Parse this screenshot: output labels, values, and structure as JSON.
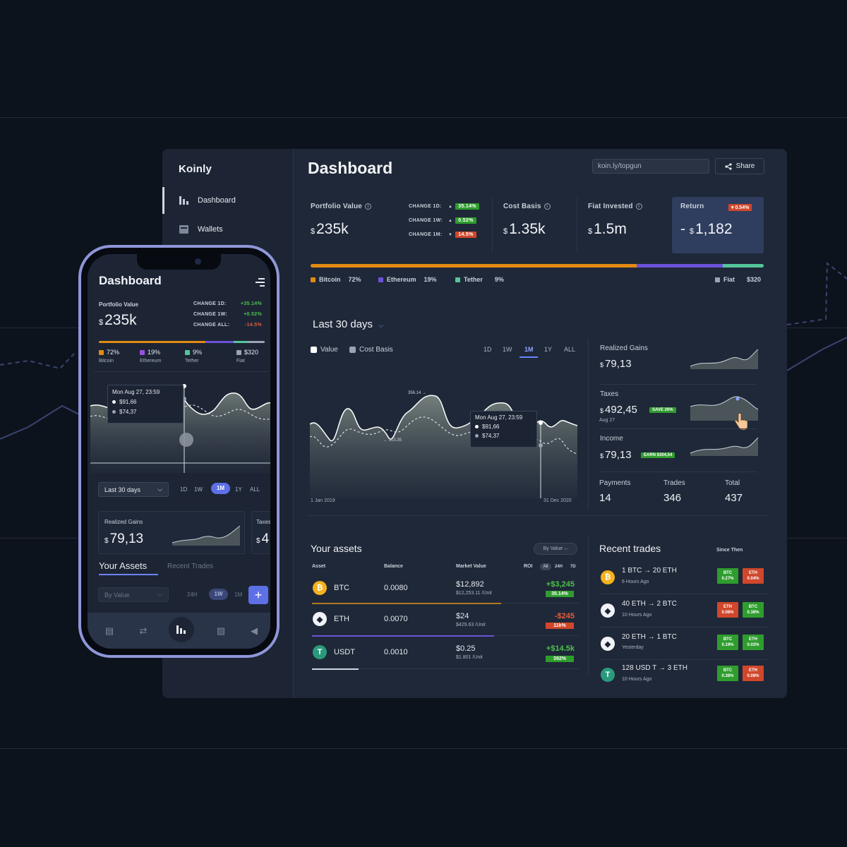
{
  "sidebar": {
    "logo": "Koinly",
    "items": [
      {
        "label": "Dashboard",
        "icon": "bar-chart-icon",
        "active": true
      },
      {
        "label": "Wallets",
        "icon": "wallet-icon",
        "active": false
      }
    ]
  },
  "header": {
    "title": "Dashboard",
    "url": "koin.ly/topgun",
    "share_label": "Share"
  },
  "stats": {
    "portfolio": {
      "label": "Portfolio Value",
      "currency": "$",
      "value": "235k"
    },
    "changes": [
      {
        "label": "CHANGE 1D:",
        "value": "35.14%",
        "direction": "up"
      },
      {
        "label": "CHANGE 1W:",
        "value": "0.52%",
        "direction": "up"
      },
      {
        "label": "CHANGE 1M:",
        "value": "14.5%",
        "direction": "down"
      }
    ],
    "cost_basis": {
      "label": "Cost Basis",
      "currency": "$",
      "value": "1.35k"
    },
    "fiat_invested": {
      "label": "Fiat Invested",
      "currency": "$",
      "value": "1.5m"
    },
    "return": {
      "label": "Return",
      "badge": "▾ 0.54%",
      "prefix": "-",
      "currency": "$",
      "value": "1,182"
    }
  },
  "allocation": [
    {
      "name": "Bitcoin",
      "pct": "72%",
      "share": 72,
      "color": "#e38a12"
    },
    {
      "name": "Ethereum",
      "pct": "19%",
      "share": 19,
      "color": "#6b52d8"
    },
    {
      "name": "Tether",
      "pct": "9%",
      "share": 9,
      "color": "#54c59a"
    }
  ],
  "fiat": {
    "name": "Fiat",
    "value": "$320",
    "color": "#9aa3b3"
  },
  "chart": {
    "title": "Last 30 days",
    "legend": [
      {
        "name": "Value",
        "color": "#ffffff"
      },
      {
        "name": "Cost Basis",
        "color": "#9aa3b3"
      }
    ],
    "ranges": [
      "1D",
      "1W",
      "1M",
      "1Y",
      "ALL"
    ],
    "active_range": "1M",
    "peak_label": "356.14 →",
    "low_label": "← 103.35",
    "tooltip": {
      "date": "Mon Aug 27, 23:59",
      "value": "$91,66",
      "cost": "$74,37"
    },
    "start_date": "1 Jan 2019",
    "end_date": "31 Dec 2020"
  },
  "right_panel": {
    "realized": {
      "label": "Realized Gains",
      "currency": "$",
      "value": "79,13"
    },
    "taxes": {
      "label": "Taxes",
      "currency": "$",
      "value": "492,45",
      "badge": "SAVE 26%",
      "date": "Aug 27"
    },
    "income": {
      "label": "Income",
      "currency": "$",
      "value": "79,13",
      "badge": "EARN $304,54"
    },
    "footer": [
      {
        "label": "Payments",
        "value": "14"
      },
      {
        "label": "Trades",
        "value": "346"
      },
      {
        "label": "Total",
        "value": "437"
      }
    ]
  },
  "assets": {
    "title": "Your assets",
    "sort": "By Value",
    "headers": {
      "asset": "Asset",
      "balance": "Balance",
      "market": "Market Value",
      "roi": "ROI"
    },
    "roi_ranges": [
      "All",
      "24H",
      "7D"
    ],
    "rows": [
      {
        "symbol": "BTC",
        "icon": "bitcoin-icon",
        "balance": "0.0080",
        "value": "$12,892",
        "unit": "$12,253.11 /Unit",
        "roi": "+$3,245",
        "roi_pct": "35.14%",
        "positive": true
      },
      {
        "symbol": "ETH",
        "icon": "ethereum-icon",
        "balance": "0.0070",
        "value": "$24",
        "unit": "$429.63 /Unit",
        "roi": "-$245",
        "roi_pct": "11k%",
        "positive": false
      },
      {
        "symbol": "USDT",
        "icon": "tether-icon",
        "balance": "0.0010",
        "value": "$0.25",
        "unit": "$1.801 /Unit",
        "roi": "+$14.5k",
        "roi_pct": "392%",
        "positive": true
      }
    ]
  },
  "trades": {
    "title": "Recent trades",
    "since": "Since Then",
    "rows": [
      {
        "title": "1 BTC → 20 ETH",
        "time": "6 Hours Ago",
        "icon": "bitcoin-icon",
        "b1": {
          "name": "BTC",
          "pct": "0.27%",
          "positive": true
        },
        "b2": {
          "name": "ETH",
          "pct": "0.04%",
          "positive": false
        }
      },
      {
        "title": "40 ETH → 2 BTC",
        "time": "10 Hours Ago",
        "icon": "ethereum-icon",
        "b1": {
          "name": "ETH",
          "pct": "0.08%",
          "positive": false
        },
        "b2": {
          "name": "BTC",
          "pct": "0.38%",
          "positive": true
        }
      },
      {
        "title": "20 ETH → 1 BTC",
        "time": "Yesterday",
        "icon": "ethereum-icon",
        "b1": {
          "name": "BTC",
          "pct": "0.19%",
          "positive": true
        },
        "b2": {
          "name": "ETH",
          "pct": "0.02%",
          "positive": true
        }
      },
      {
        "title": "128 USD T → 3 ETH",
        "time": "10 Hours Ago",
        "icon": "tether-icon",
        "b1": {
          "name": "BTC",
          "pct": "0.38%",
          "positive": true
        },
        "b2": {
          "name": "ETH",
          "pct": "0.08%",
          "positive": false
        }
      }
    ]
  },
  "phone": {
    "title": "Dashboard",
    "portfolio_label": "Portfolio Value",
    "currency": "$",
    "portfolio_value": "235k",
    "changes": [
      {
        "label": "CHANGE 1D:",
        "value": "+35.14%",
        "positive": true
      },
      {
        "label": "CHANGE 1W:",
        "value": "+0.52%",
        "positive": true
      },
      {
        "label": "CHANGE ALL:",
        "value": "-14.5%",
        "positive": false
      }
    ],
    "legend": [
      {
        "pct": "72%",
        "name": "Bitcoin"
      },
      {
        "pct": "19%",
        "name": "Ethereum"
      },
      {
        "pct": "9%",
        "name": "Tether"
      },
      {
        "pct": "$320",
        "name": "Fiat"
      }
    ],
    "tooltip": {
      "date": "Mon Aug 27, 23:59",
      "value": "$91,66",
      "cost": "$74,37"
    },
    "period": "Last 30 days",
    "ranges": [
      "1D",
      "1W",
      "1M",
      "1Y",
      "ALL"
    ],
    "active_range": "1M",
    "card1": {
      "label": "Realized Gains",
      "currency": "$",
      "value": "79,13"
    },
    "card2": {
      "label": "Taxes",
      "currency": "$",
      "value": "4"
    },
    "tabs": [
      "Your Assets",
      "Recent Trades"
    ],
    "sort": "By Value",
    "asset_ranges": [
      "24H",
      "1W",
      "1M"
    ],
    "asset_active": "1W",
    "plus": "+"
  }
}
